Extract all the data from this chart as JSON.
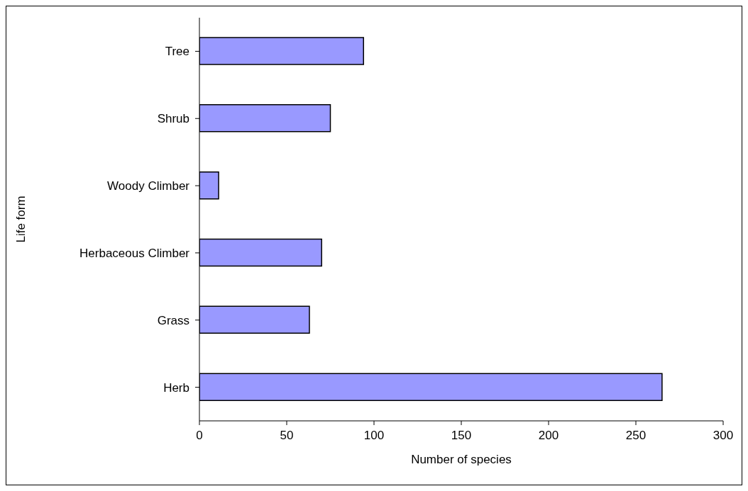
{
  "chart_data": {
    "type": "bar",
    "orientation": "horizontal",
    "xlabel": "Number of species",
    "ylabel": "Life form",
    "categories": [
      "Tree",
      "Shrub",
      "Woody Climber",
      "Herbaceous Climber",
      "Grass",
      "Herb"
    ],
    "values": [
      94,
      75,
      11,
      70,
      63,
      265
    ],
    "color": "#9999ff",
    "xlim": [
      0,
      300
    ],
    "xticks": [
      0,
      50,
      100,
      150,
      200,
      250,
      300
    ],
    "grid": false,
    "legend": false
  }
}
